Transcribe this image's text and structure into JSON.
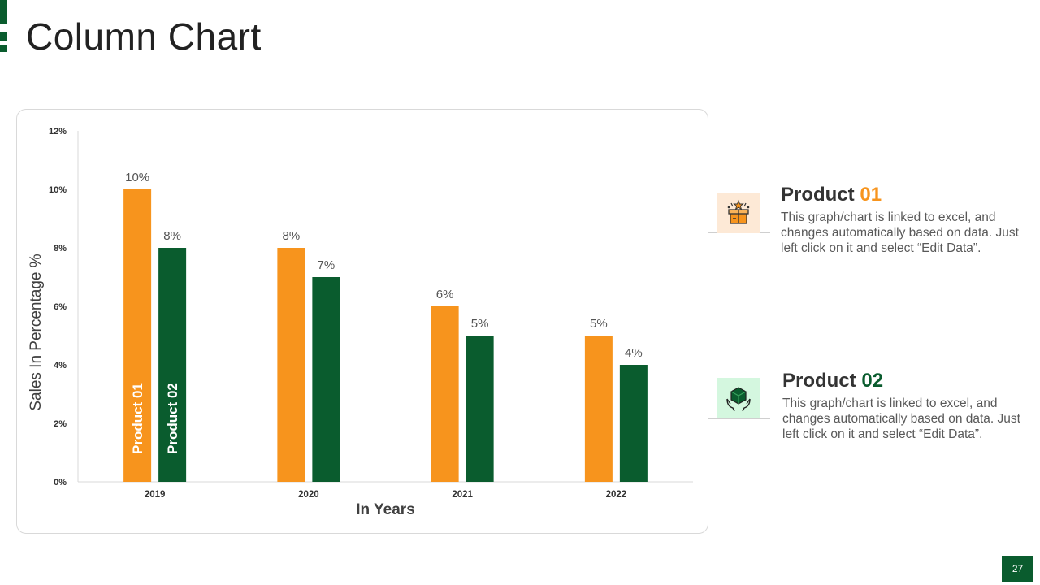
{
  "slide": {
    "title": "Column Chart",
    "page_number": "27"
  },
  "colors": {
    "product_01": "#f7941d",
    "product_02": "#0a5c2e",
    "accent": "#0a5c2e"
  },
  "products": [
    {
      "label": "Product",
      "number": "01",
      "description": "This graph/chart is linked to excel, and changes automatically based on data. Just left click on it and select “Edit Data”.",
      "icon": "gift-box-icon"
    },
    {
      "label": "Product",
      "number": "02",
      "description": "This graph/chart is linked to excel, and changes automatically based on data. Just left click on it and select “Edit Data”.",
      "icon": "hands-cube-icon"
    }
  ],
  "chart_data": {
    "type": "bar",
    "categories": [
      "2019",
      "2020",
      "2021",
      "2022"
    ],
    "series": [
      {
        "name": "Product 01",
        "values": [
          10,
          8,
          6,
          5
        ]
      },
      {
        "name": "Product 02",
        "values": [
          8,
          7,
          5,
          4
        ]
      }
    ],
    "data_labels": [
      [
        "10%",
        "8%",
        "6%",
        "5%"
      ],
      [
        "8%",
        "7%",
        "5%",
        "4%"
      ]
    ],
    "xlabel": "In Years",
    "ylabel": "Sales In Percentage %",
    "ylim": [
      0,
      12
    ],
    "yticks": [
      "0%",
      "2%",
      "4%",
      "6%",
      "8%",
      "10%",
      "12%"
    ],
    "grid": false,
    "legend": "in-bar labels"
  }
}
